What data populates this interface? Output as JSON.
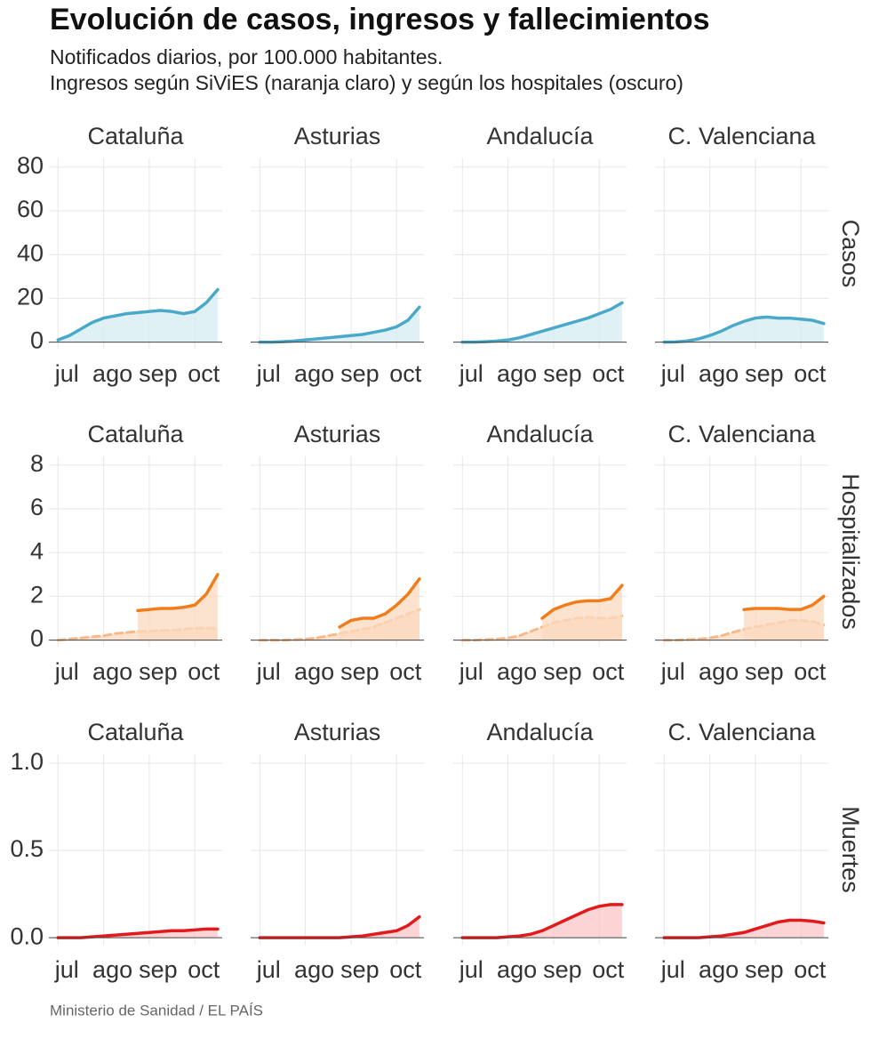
{
  "header": {
    "title": "Evolución de casos, ingresos y fallecimientos",
    "subtitle": [
      "Notificados diarios, por 100.000 habitantes.",
      "Ingresos según SiViES (naranja claro) y según los hospitales (oscuro)"
    ]
  },
  "source": "Ministerio de Sanidad / EL PAÍS",
  "chart_data": [
    {
      "type": "line",
      "title": "Cataluña",
      "x": [
        0,
        0.25,
        0.5,
        0.75,
        1,
        1.25,
        1.5,
        1.75,
        2,
        2.25,
        2.5,
        2.75,
        3,
        3.25,
        3.5
      ],
      "xlim": [
        -0.2,
        3.6
      ],
      "xticks": [
        {
          "value": 0,
          "label": "jul"
        },
        {
          "value": 1,
          "label": "ago"
        },
        {
          "value": 2,
          "label": "sep"
        },
        {
          "value": 3,
          "label": "oct"
        }
      ],
      "ylim": [
        -3,
        84
      ],
      "yticks": [
        0,
        20,
        40,
        60,
        80
      ],
      "grid": true,
      "fill": "#d5ecf3",
      "series": [
        {
          "color": "#4aa9c9",
          "values": [
            1,
            3,
            6,
            9,
            11,
            12,
            13,
            13.5,
            14,
            14.5,
            14,
            13,
            14,
            18,
            24
          ]
        }
      ]
    },
    {
      "type": "line",
      "title": "Asturias",
      "x": [
        0,
        0.25,
        0.5,
        0.75,
        1,
        1.25,
        1.5,
        1.75,
        2,
        2.25,
        2.5,
        2.75,
        3,
        3.25,
        3.5
      ],
      "xlim": [
        -0.2,
        3.6
      ],
      "xticks": [
        {
          "value": 0,
          "label": "jul"
        },
        {
          "value": 1,
          "label": "ago"
        },
        {
          "value": 2,
          "label": "sep"
        },
        {
          "value": 3,
          "label": "oct"
        }
      ],
      "ylim": [
        -3,
        84
      ],
      "yticks": [
        0,
        20,
        40,
        60,
        80
      ],
      "grid": true,
      "fill": "#d5ecf3",
      "series": [
        {
          "color": "#4aa9c9",
          "values": [
            0,
            0,
            0.2,
            0.5,
            1,
            1.5,
            2,
            2.5,
            3,
            3.5,
            4.5,
            5.5,
            7,
            10,
            16
          ]
        }
      ]
    },
    {
      "type": "line",
      "title": "Andalucía",
      "x": [
        0,
        0.25,
        0.5,
        0.75,
        1,
        1.25,
        1.5,
        1.75,
        2,
        2.25,
        2.5,
        2.75,
        3,
        3.25,
        3.5
      ],
      "xlim": [
        -0.2,
        3.6
      ],
      "xticks": [
        {
          "value": 0,
          "label": "jul"
        },
        {
          "value": 1,
          "label": "ago"
        },
        {
          "value": 2,
          "label": "sep"
        },
        {
          "value": 3,
          "label": "oct"
        }
      ],
      "ylim": [
        -3,
        84
      ],
      "yticks": [
        0,
        20,
        40,
        60,
        80
      ],
      "grid": true,
      "fill": "#d5ecf3",
      "series": [
        {
          "color": "#4aa9c9",
          "values": [
            0,
            0,
            0.2,
            0.5,
            1,
            2,
            3.5,
            5,
            6.5,
            8,
            9.5,
            11,
            13,
            15,
            18
          ]
        }
      ]
    },
    {
      "type": "line",
      "title": "C. Valenciana",
      "row_label": "Casos",
      "x": [
        0,
        0.25,
        0.5,
        0.75,
        1,
        1.25,
        1.5,
        1.75,
        2,
        2.25,
        2.5,
        2.75,
        3,
        3.25,
        3.5
      ],
      "xlim": [
        -0.2,
        3.6
      ],
      "xticks": [
        {
          "value": 0,
          "label": "jul"
        },
        {
          "value": 1,
          "label": "ago"
        },
        {
          "value": 2,
          "label": "sep"
        },
        {
          "value": 3,
          "label": "oct"
        }
      ],
      "ylim": [
        -3,
        84
      ],
      "yticks": [
        0,
        20,
        40,
        60,
        80
      ],
      "grid": true,
      "fill": "#d5ecf3",
      "series": [
        {
          "color": "#4aa9c9",
          "values": [
            0,
            0.1,
            0.5,
            1.5,
            3,
            5,
            7.5,
            9.5,
            11,
            11.5,
            11,
            11,
            10.5,
            10,
            8.5
          ]
        }
      ]
    },
    {
      "type": "line",
      "title": "Cataluña",
      "x": [
        0,
        0.25,
        0.5,
        0.75,
        1,
        1.25,
        1.5,
        1.75,
        2,
        2.25,
        2.5,
        2.75,
        3,
        3.25,
        3.5
      ],
      "xlim": [
        -0.2,
        3.6
      ],
      "xticks": [
        {
          "value": 0,
          "label": "jul"
        },
        {
          "value": 1,
          "label": "ago"
        },
        {
          "value": 2,
          "label": "sep"
        },
        {
          "value": 3,
          "label": "oct"
        }
      ],
      "ylim": [
        -0.3,
        8.4
      ],
      "yticks": [
        0,
        2,
        4,
        6,
        8
      ],
      "grid": true,
      "fill": "#fbd9bf",
      "series": [
        {
          "color": "#f5b98a",
          "style": "dashed",
          "values": [
            0,
            0.05,
            0.1,
            0.15,
            0.2,
            0.3,
            0.35,
            0.4,
            0.4,
            0.45,
            0.45,
            0.5,
            0.55,
            0.55,
            0.55
          ]
        },
        {
          "color": "#f07d1a",
          "values": [
            null,
            null,
            null,
            null,
            null,
            null,
            null,
            1.35,
            1.4,
            1.45,
            1.45,
            1.5,
            1.6,
            2.1,
            3.0
          ]
        }
      ]
    },
    {
      "type": "line",
      "title": "Asturias",
      "x": [
        0,
        0.25,
        0.5,
        0.75,
        1,
        1.25,
        1.5,
        1.75,
        2,
        2.25,
        2.5,
        2.75,
        3,
        3.25,
        3.5
      ],
      "xlim": [
        -0.2,
        3.6
      ],
      "xticks": [
        {
          "value": 0,
          "label": "jul"
        },
        {
          "value": 1,
          "label": "ago"
        },
        {
          "value": 2,
          "label": "sep"
        },
        {
          "value": 3,
          "label": "oct"
        }
      ],
      "ylim": [
        -0.3,
        8.4
      ],
      "yticks": [
        0,
        2,
        4,
        6,
        8
      ],
      "grid": true,
      "fill": "#fbd9bf",
      "series": [
        {
          "color": "#f5b98a",
          "style": "dashed",
          "values": [
            0,
            0,
            0,
            0.02,
            0.05,
            0.1,
            0.2,
            0.3,
            0.4,
            0.5,
            0.6,
            0.8,
            1.0,
            1.2,
            1.4
          ]
        },
        {
          "color": "#f07d1a",
          "values": [
            null,
            null,
            null,
            null,
            null,
            null,
            null,
            0.6,
            0.9,
            1.0,
            1.0,
            1.2,
            1.6,
            2.1,
            2.8
          ]
        }
      ]
    },
    {
      "type": "line",
      "title": "Andalucía",
      "x": [
        0,
        0.25,
        0.5,
        0.75,
        1,
        1.25,
        1.5,
        1.75,
        2,
        2.25,
        2.5,
        2.75,
        3,
        3.25,
        3.5
      ],
      "xlim": [
        -0.2,
        3.6
      ],
      "xticks": [
        {
          "value": 0,
          "label": "jul"
        },
        {
          "value": 1,
          "label": "ago"
        },
        {
          "value": 2,
          "label": "sep"
        },
        {
          "value": 3,
          "label": "oct"
        }
      ],
      "ylim": [
        -0.3,
        8.4
      ],
      "yticks": [
        0,
        2,
        4,
        6,
        8
      ],
      "grid": true,
      "fill": "#fbd9bf",
      "series": [
        {
          "color": "#f5b98a",
          "style": "dashed",
          "values": [
            0,
            0,
            0.02,
            0.05,
            0.1,
            0.2,
            0.4,
            0.6,
            0.8,
            0.9,
            1.0,
            1.05,
            1.0,
            1.0,
            1.1
          ]
        },
        {
          "color": "#f07d1a",
          "values": [
            null,
            null,
            null,
            null,
            null,
            null,
            null,
            1.0,
            1.4,
            1.6,
            1.75,
            1.8,
            1.8,
            1.9,
            2.5
          ]
        }
      ]
    },
    {
      "type": "line",
      "title": "C. Valenciana",
      "row_label": "Hospitalizados",
      "x": [
        0,
        0.25,
        0.5,
        0.75,
        1,
        1.25,
        1.5,
        1.75,
        2,
        2.25,
        2.5,
        2.75,
        3,
        3.25,
        3.5
      ],
      "xlim": [
        -0.2,
        3.6
      ],
      "xticks": [
        {
          "value": 0,
          "label": "jul"
        },
        {
          "value": 1,
          "label": "ago"
        },
        {
          "value": 2,
          "label": "sep"
        },
        {
          "value": 3,
          "label": "oct"
        }
      ],
      "ylim": [
        -0.3,
        8.4
      ],
      "yticks": [
        0,
        2,
        4,
        6,
        8
      ],
      "grid": true,
      "fill": "#fbd9bf",
      "series": [
        {
          "color": "#f5b98a",
          "style": "dashed",
          "values": [
            0,
            0,
            0.02,
            0.05,
            0.1,
            0.2,
            0.35,
            0.5,
            0.6,
            0.7,
            0.8,
            0.9,
            0.9,
            0.85,
            0.7
          ]
        },
        {
          "color": "#f07d1a",
          "values": [
            null,
            null,
            null,
            null,
            null,
            null,
            null,
            1.4,
            1.45,
            1.45,
            1.45,
            1.4,
            1.4,
            1.6,
            2.0
          ]
        }
      ]
    },
    {
      "type": "line",
      "title": "Cataluña",
      "x": [
        0,
        0.25,
        0.5,
        0.75,
        1,
        1.25,
        1.5,
        1.75,
        2,
        2.25,
        2.5,
        2.75,
        3,
        3.25,
        3.5
      ],
      "xlim": [
        -0.2,
        3.6
      ],
      "xticks": [
        {
          "value": 0,
          "label": "jul"
        },
        {
          "value": 1,
          "label": "ago"
        },
        {
          "value": 2,
          "label": "sep"
        },
        {
          "value": 3,
          "label": "oct"
        }
      ],
      "ylim": [
        -0.04,
        1.05
      ],
      "yticks": [
        {
          "value": 0,
          "label": "0.0"
        },
        {
          "value": 0.5,
          "label": "0.5"
        },
        {
          "value": 1,
          "label": "1.0"
        }
      ],
      "grid": true,
      "fill": "#fcc5c8",
      "series": [
        {
          "color": "#e31a1c",
          "values": [
            0,
            0,
            0,
            0.005,
            0.01,
            0.015,
            0.02,
            0.025,
            0.03,
            0.035,
            0.04,
            0.04,
            0.045,
            0.05,
            0.05
          ]
        }
      ]
    },
    {
      "type": "line",
      "title": "Asturias",
      "x": [
        0,
        0.25,
        0.5,
        0.75,
        1,
        1.25,
        1.5,
        1.75,
        2,
        2.25,
        2.5,
        2.75,
        3,
        3.25,
        3.5
      ],
      "xlim": [
        -0.2,
        3.6
      ],
      "xticks": [
        {
          "value": 0,
          "label": "jul"
        },
        {
          "value": 1,
          "label": "ago"
        },
        {
          "value": 2,
          "label": "sep"
        },
        {
          "value": 3,
          "label": "oct"
        }
      ],
      "ylim": [
        -0.04,
        1.05
      ],
      "yticks": [
        {
          "value": 0,
          "label": "0.0"
        },
        {
          "value": 0.5,
          "label": "0.5"
        },
        {
          "value": 1,
          "label": "1.0"
        }
      ],
      "grid": true,
      "fill": "#fcc5c8",
      "series": [
        {
          "color": "#e31a1c",
          "values": [
            0,
            0,
            0,
            0,
            0,
            0,
            0,
            0,
            0.005,
            0.01,
            0.02,
            0.03,
            0.04,
            0.07,
            0.12
          ]
        }
      ]
    },
    {
      "type": "line",
      "title": "Andalucía",
      "x": [
        0,
        0.25,
        0.5,
        0.75,
        1,
        1.25,
        1.5,
        1.75,
        2,
        2.25,
        2.5,
        2.75,
        3,
        3.25,
        3.5
      ],
      "xlim": [
        -0.2,
        3.6
      ],
      "xticks": [
        {
          "value": 0,
          "label": "jul"
        },
        {
          "value": 1,
          "label": "ago"
        },
        {
          "value": 2,
          "label": "sep"
        },
        {
          "value": 3,
          "label": "oct"
        }
      ],
      "ylim": [
        -0.04,
        1.05
      ],
      "yticks": [
        {
          "value": 0,
          "label": "0.0"
        },
        {
          "value": 0.5,
          "label": "0.5"
        },
        {
          "value": 1,
          "label": "1.0"
        }
      ],
      "grid": true,
      "fill": "#fcc5c8",
      "series": [
        {
          "color": "#e31a1c",
          "values": [
            0,
            0,
            0,
            0,
            0.005,
            0.01,
            0.02,
            0.04,
            0.07,
            0.1,
            0.13,
            0.16,
            0.18,
            0.19,
            0.19
          ]
        }
      ]
    },
    {
      "type": "line",
      "title": "C. Valenciana",
      "row_label": "Muertes",
      "x": [
        0,
        0.25,
        0.5,
        0.75,
        1,
        1.25,
        1.5,
        1.75,
        2,
        2.25,
        2.5,
        2.75,
        3,
        3.25,
        3.5
      ],
      "xlim": [
        -0.2,
        3.6
      ],
      "xticks": [
        {
          "value": 0,
          "label": "jul"
        },
        {
          "value": 1,
          "label": "ago"
        },
        {
          "value": 2,
          "label": "sep"
        },
        {
          "value": 3,
          "label": "oct"
        }
      ],
      "ylim": [
        -0.04,
        1.05
      ],
      "yticks": [
        {
          "value": 0,
          "label": "0.0"
        },
        {
          "value": 0.5,
          "label": "0.5"
        },
        {
          "value": 1,
          "label": "1.0"
        }
      ],
      "grid": true,
      "fill": "#fcc5c8",
      "series": [
        {
          "color": "#e31a1c",
          "values": [
            0,
            0,
            0,
            0,
            0.005,
            0.01,
            0.02,
            0.03,
            0.05,
            0.07,
            0.09,
            0.1,
            0.1,
            0.095,
            0.085
          ]
        }
      ]
    }
  ]
}
